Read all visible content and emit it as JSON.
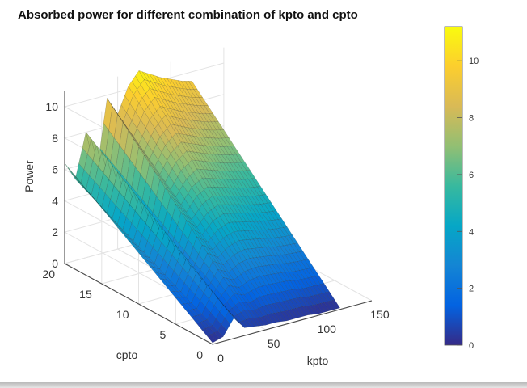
{
  "chart_data": {
    "type": "surface",
    "title": "Absorbed power for different combination of kpto and cpto",
    "xlabel": "kpto",
    "ylabel": "cpto",
    "zlabel": "Power",
    "xlim": [
      0,
      150
    ],
    "ylim": [
      0,
      20
    ],
    "zlim": [
      0,
      11
    ],
    "x_ticks": [
      "0",
      "50",
      "100",
      "150"
    ],
    "y_ticks": [
      "0",
      "5",
      "10",
      "15",
      "20"
    ],
    "z_ticks": [
      "0",
      "2",
      "4",
      "6",
      "8",
      "10"
    ],
    "colormap": "parula",
    "colorbar": {
      "min": 0,
      "max": 11.2,
      "ticks": [
        "0",
        "2",
        "4",
        "6",
        "8",
        "10"
      ]
    },
    "grid": true,
    "surface_samples": {
      "kpto": [
        0,
        10,
        20,
        30,
        40,
        50,
        60,
        70,
        80,
        90,
        100,
        110,
        120
      ],
      "cpto_0": [
        0.1,
        0.3,
        1.3,
        0.5,
        0.4,
        0.3,
        0.3,
        0.2,
        0.2,
        0.2,
        0.1,
        0.1,
        0.1
      ],
      "cpto_20": [
        6.4,
        5.2,
        8.0,
        5.2,
        9.8,
        8.6,
        10.2,
        11.0,
        10.6,
        10.2,
        9.9,
        9.6,
        9.4
      ]
    }
  },
  "colors": {
    "parula": [
      "#352a87",
      "#0363e1",
      "#1485d4",
      "#06a7c6",
      "#38b99e",
      "#92bf73",
      "#d9ba56",
      "#fcce2e",
      "#f9fb0e"
    ]
  }
}
